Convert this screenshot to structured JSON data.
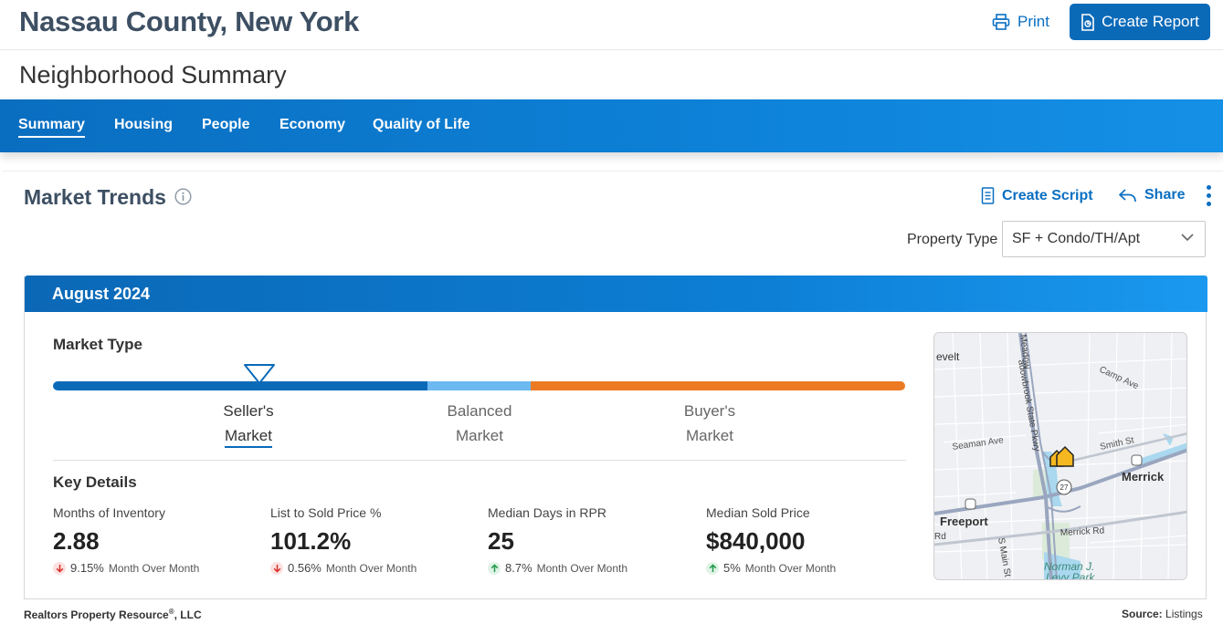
{
  "header": {
    "county": "Nassau County, New York",
    "print_label": "Print",
    "create_report_label": "Create Report"
  },
  "summary_title": "Neighborhood Summary",
  "nav": {
    "items": [
      {
        "label": "Summary",
        "active": true
      },
      {
        "label": "Housing"
      },
      {
        "label": "People"
      },
      {
        "label": "Economy"
      },
      {
        "label": "Quality of Life"
      }
    ]
  },
  "market_trends": {
    "title": "Market Trends",
    "create_script_label": "Create Script",
    "share_label": "Share",
    "property_type_label": "Property Type",
    "property_type_value": "SF + Condo/TH/Apt",
    "month": "August 2024",
    "market_type_label": "Market Type",
    "market_types": [
      {
        "line1": "Seller's",
        "line2": "Market",
        "active": true
      },
      {
        "line1": "Balanced",
        "line2": "Market"
      },
      {
        "line1": "Buyer's",
        "line2": "Market"
      }
    ],
    "key_details_label": "Key Details",
    "key_details": [
      {
        "label": "Months of Inventory",
        "value": "2.88",
        "direction": "down",
        "pct": "9.15%",
        "period": "Month Over Month"
      },
      {
        "label": "List to Sold Price %",
        "value": "101.2%",
        "direction": "down",
        "pct": "0.56%",
        "period": "Month Over Month"
      },
      {
        "label": "Median Days in RPR",
        "value": "25",
        "direction": "up",
        "pct": "8.7%",
        "period": "Month Over Month"
      },
      {
        "label": "Median Sold Price",
        "value": "$840,000",
        "direction": "up",
        "pct": "5%",
        "period": "Month Over Month"
      }
    ],
    "map_labels": {
      "roosevelt": "evelt",
      "meadowbrook": "adowbrook State Pkwy",
      "meadow_top": "Meadow",
      "camp_ave": "Camp Ave",
      "seaman_ave": "Seaman Ave",
      "smith_st": "Smith St",
      "merrick": "Merrick",
      "freeport": "Freeport",
      "merrick_rd": "Merrick Rd",
      "rd": "Rd",
      "s_main_st": "S Main St",
      "norman": "Norman J.",
      "levy_park": "Levy Park",
      "route_27": "27"
    },
    "colors": {
      "seller": "#0b6ab8",
      "balanced": "#6cb9f2",
      "buyer": "#ec7a22"
    }
  },
  "footer": {
    "left_name": "Realtors Property Resource",
    "left_reg": "®",
    "left_suffix": ", LLC",
    "source_label": "Source:",
    "source_value": "Listings"
  }
}
